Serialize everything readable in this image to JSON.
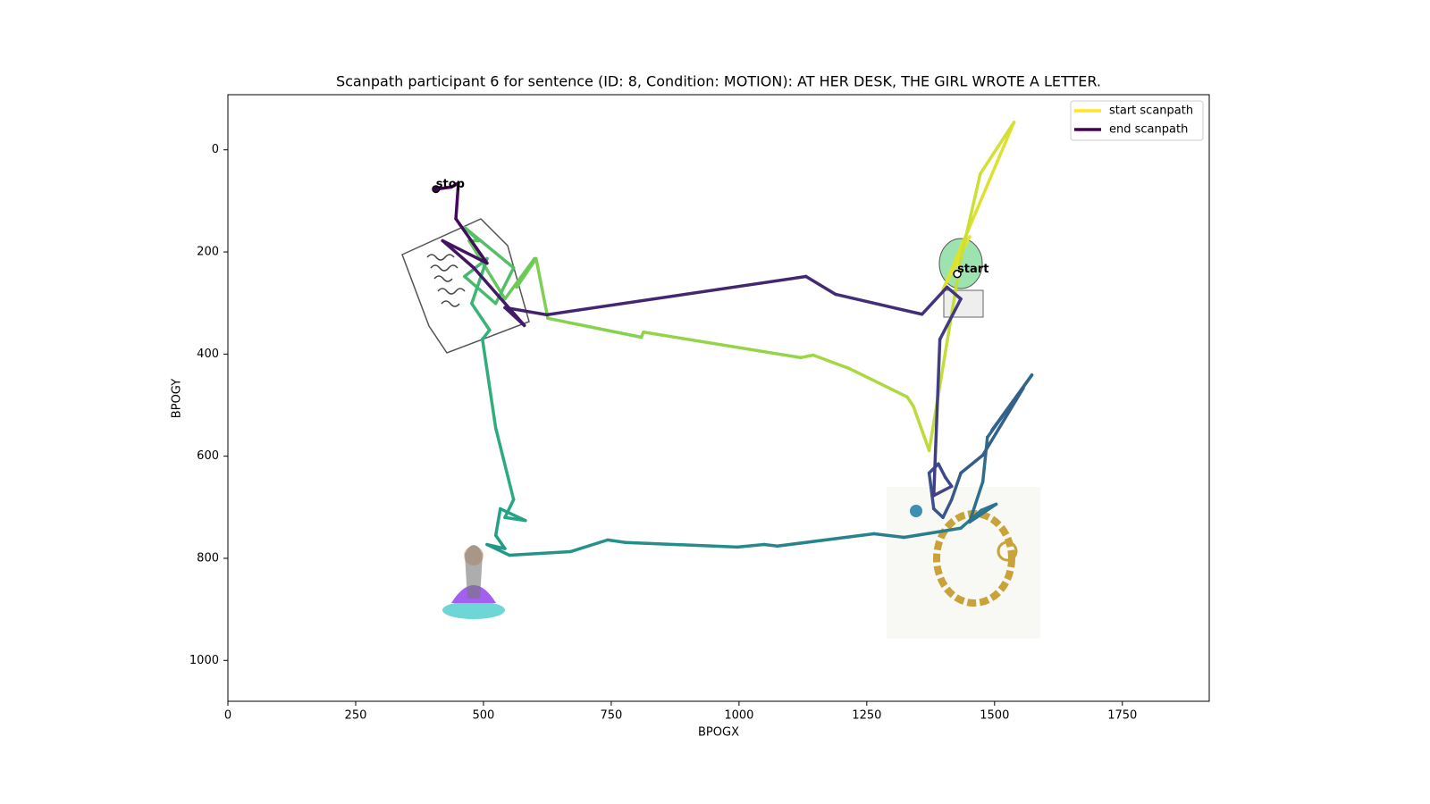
{
  "chart_data": {
    "type": "scanpath",
    "title": "Scanpath participant 6 for sentence (ID: 8, Condition: MOTION):  AT HER DESK, THE GIRL WROTE A LETTER.",
    "xlabel": "BPOGX",
    "ylabel": "BPOGY",
    "xlim": [
      0,
      1920
    ],
    "ylim": [
      1080,
      -108
    ],
    "xticks": [
      0,
      250,
      500,
      750,
      1000,
      1250,
      1500,
      1750
    ],
    "yticks": [
      0,
      200,
      400,
      600,
      800,
      1000
    ],
    "colormap": [
      "#fde725",
      "#7ad151",
      "#22a884",
      "#2a788e",
      "#414487",
      "#440154"
    ],
    "legend": [
      {
        "name": "start scanpath",
        "color": "#fde725"
      },
      {
        "name": "end scanpath",
        "color": "#440154"
      }
    ],
    "start_label": "start",
    "end_label": "stop",
    "x": [
      1427,
      1439,
      1411,
      1451,
      1399,
      1538,
      1472,
      1434,
      1372,
      1341,
      1329,
      1215,
      1145,
      1121,
      813,
      809,
      626,
      603,
      565,
      600,
      542,
      472,
      490,
      463,
      559,
      524,
      463,
      507,
      477,
      512,
      498,
      524,
      559,
      542,
      582,
      533,
      524,
      542,
      507,
      551,
      670,
      743,
      778,
      997,
      1049,
      1075,
      1264,
      1323,
      1434,
      1474,
      1503,
      1451,
      1477,
      1486,
      1573,
      1495,
      1556,
      1477,
      1434,
      1416,
      1399,
      1381,
      1372,
      1390,
      1404,
      1416,
      1381,
      1393,
      1434,
      1407,
      1358,
      1189,
      1131,
      624,
      542,
      580,
      481,
      420,
      507,
      446,
      451,
      437,
      407
    ],
    "y": [
      243,
      178,
      248,
      170,
      274,
      -54,
      47,
      213,
      589,
      502,
      484,
      428,
      402,
      407,
      357,
      367,
      330,
      213,
      269,
      213,
      292,
      178,
      178,
      152,
      231,
      301,
      248,
      213,
      301,
      353,
      371,
      545,
      685,
      720,
      726,
      703,
      755,
      781,
      773,
      794,
      787,
      764,
      769,
      778,
      773,
      776,
      752,
      759,
      741,
      706,
      694,
      729,
      650,
      563,
      441,
      549,
      467,
      598,
      633,
      685,
      720,
      703,
      633,
      615,
      642,
      659,
      677,
      371,
      292,
      269,
      322,
      283,
      248,
      323,
      309,
      344,
      231,
      178,
      222,
      135,
      65,
      73,
      77
    ]
  }
}
